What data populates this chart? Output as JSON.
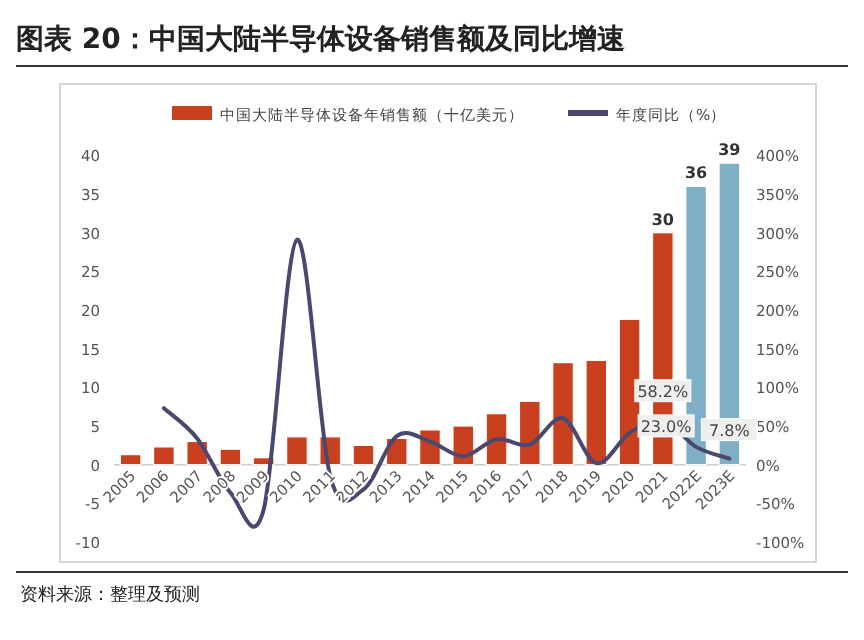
{
  "chart_data": {
    "type": "bar",
    "title": "图表 20：中国大陆半导体设备销售额及同比增速",
    "categories": [
      "2005",
      "2006",
      "2007",
      "2008",
      "2009",
      "2010",
      "2011",
      "2012",
      "2013",
      "2014",
      "2015",
      "2016",
      "2017",
      "2018",
      "2019",
      "2020",
      "2021",
      "2022E",
      "2023E"
    ],
    "series": [
      {
        "name": "中国大陆半导体设备年销售额（十亿美元）",
        "colors": [
          "#c9401f",
          "#c9401f",
          "#c9401f",
          "#c9401f",
          "#c9401f",
          "#c9401f",
          "#c9401f",
          "#c9401f",
          "#c9401f",
          "#c9401f",
          "#c9401f",
          "#c9401f",
          "#c9401f",
          "#c9401f",
          "#c9401f",
          "#c9401f",
          "#c9401f",
          "#7fafc6",
          "#7fafc6"
        ],
        "values": [
          1.3,
          2.3,
          3.0,
          2.0,
          0.9,
          3.6,
          3.6,
          2.5,
          3.4,
          4.5,
          5.0,
          6.6,
          8.2,
          13.2,
          13.5,
          18.8,
          30,
          36,
          39
        ],
        "value_labels": [
          null,
          null,
          null,
          null,
          null,
          null,
          null,
          null,
          null,
          null,
          null,
          null,
          null,
          null,
          null,
          null,
          "30",
          "36",
          "39"
        ]
      },
      {
        "name": "年度同比（%）",
        "type": "line",
        "axis": "y2",
        "color": "#4a4870",
        "values": [
          null,
          73,
          34,
          -36,
          -58,
          291,
          -15,
          -32,
          37,
          30,
          11,
          33,
          26,
          60,
          2,
          41,
          58.2,
          23.0,
          7.8
        ],
        "value_labels": [
          null,
          null,
          null,
          null,
          null,
          null,
          null,
          null,
          null,
          null,
          null,
          null,
          null,
          null,
          null,
          null,
          "58.2%",
          "23.0%",
          "7.8%"
        ]
      }
    ],
    "ylim": [
      -10,
      40
    ],
    "yticks": [
      -10,
      -5,
      0,
      5,
      10,
      15,
      20,
      25,
      30,
      35,
      40
    ],
    "y2lim": [
      -100,
      400
    ],
    "y2ticks": [
      {
        "value": -100,
        "label": "-100%"
      },
      {
        "value": -50,
        "label": "-50%"
      },
      {
        "value": 0,
        "label": "0%"
      },
      {
        "value": 50,
        "label": "50%"
      },
      {
        "value": 100,
        "label": "100%"
      },
      {
        "value": 150,
        "label": "150%"
      },
      {
        "value": 200,
        "label": "200%"
      },
      {
        "value": 250,
        "label": "250%"
      },
      {
        "value": 300,
        "label": "300%"
      },
      {
        "value": 350,
        "label": "350%"
      },
      {
        "value": 400,
        "label": "400%"
      }
    ],
    "legend": "top",
    "grid": false,
    "annotations": [
      "资料来源：整理及预测"
    ]
  }
}
